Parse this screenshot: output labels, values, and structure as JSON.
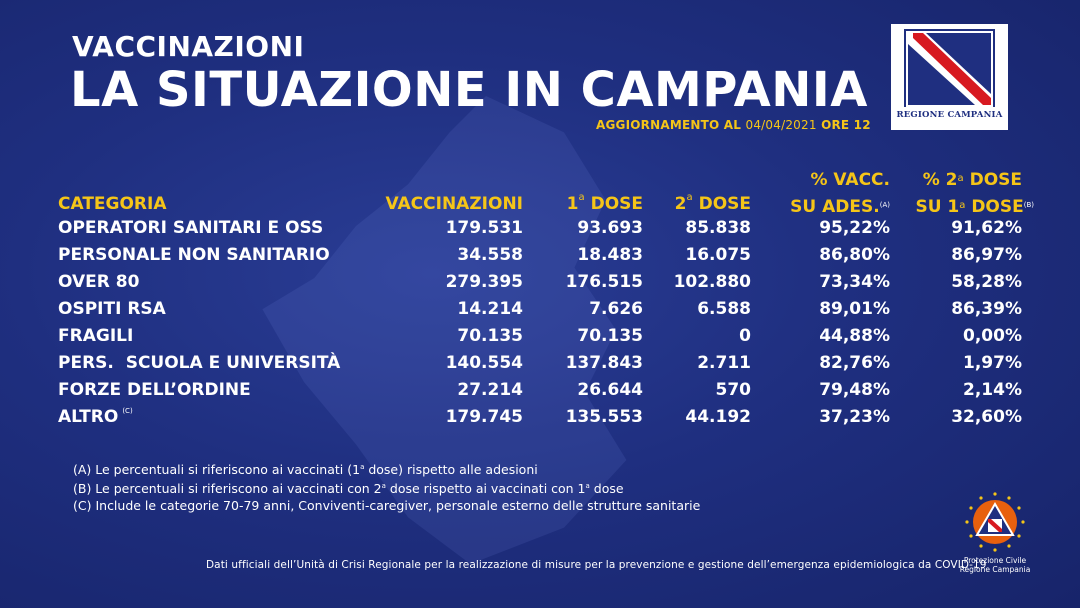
{
  "header": {
    "kicker": "VACCINAZIONI",
    "title": "LA SITUAZIONE IN CAMPANIA",
    "update_prefix": "AGGIORNAMENTO AL",
    "update_date": "04/04/2021",
    "update_suffix": "ORE 12"
  },
  "logo_regione": {
    "label": "REGIONE CAMPANIA",
    "icon": "coat-of-arms"
  },
  "table": {
    "headers": {
      "categoria": "CATEGORIA",
      "vaccinazioni": "VACCINAZIONI",
      "dose1_num": "1",
      "dose1_sup": "a",
      "dose1_word": "DOSE",
      "dose2_num": "2",
      "dose2_sup": "a",
      "dose2_word": "DOSE",
      "vacc_line1": "% VACC.",
      "vacc_line2": "SU ADES.",
      "vacc_note": "(A)",
      "second_line1_pre": "% 2",
      "second_line1_sup": "a",
      "second_line1_post": "DOSE",
      "second_line2_pre": "SU 1",
      "second_line2_sup": "a",
      "second_line2_post": "DOSE",
      "second_note": "(B)"
    },
    "rows": [
      {
        "categoria": "OPERATORI SANITARI E OSS",
        "vaccinazioni": "179.531",
        "dose1": "93.693",
        "dose2": "85.838",
        "perc_vacc": "95,22%",
        "perc_seconda": "91,62%"
      },
      {
        "categoria": "PERSONALE NON SANITARIO",
        "vaccinazioni": "34.558",
        "dose1": "18.483",
        "dose2": "16.075",
        "perc_vacc": "86,80%",
        "perc_seconda": "86,97%"
      },
      {
        "categoria": "OVER 80",
        "vaccinazioni": "279.395",
        "dose1": "176.515",
        "dose2": "102.880",
        "perc_vacc": "73,34%",
        "perc_seconda": "58,28%"
      },
      {
        "categoria": "OSPITI RSA",
        "vaccinazioni": "14.214",
        "dose1": "7.626",
        "dose2": "6.588",
        "perc_vacc": "89,01%",
        "perc_seconda": "86,39%"
      },
      {
        "categoria": "FRAGILI",
        "vaccinazioni": "70.135",
        "dose1": "70.135",
        "dose2": "0",
        "perc_vacc": "44,88%",
        "perc_seconda": "0,00%"
      },
      {
        "categoria": "PERS.  SCUOLA E UNIVERSITÀ",
        "vaccinazioni": "140.554",
        "dose1": "137.843",
        "dose2": "2.711",
        "perc_vacc": "82,76%",
        "perc_seconda": "1,97%"
      },
      {
        "categoria": "FORZE DELL’ORDINE",
        "vaccinazioni": "27.214",
        "dose1": "26.644",
        "dose2": "570",
        "perc_vacc": "79,48%",
        "perc_seconda": "2,14%"
      },
      {
        "categoria": "ALTRO",
        "categoria_note": "(C)",
        "vaccinazioni": "179.745",
        "dose1": "135.553",
        "dose2": "44.192",
        "perc_vacc": "37,23%",
        "perc_seconda": "32,60%"
      }
    ]
  },
  "notes": {
    "a_pre": "(A) Le percentuali si riferiscono ai vaccinati (1",
    "a_sup": "a",
    "a_post": " dose) rispetto alle adesioni",
    "b_pre": "(B) Le percentuali si riferiscono ai vaccinati con 2",
    "b_sup": "a",
    "b_mid": " dose rispetto ai vaccinati con 1",
    "b_sup2": "a",
    "b_post": " dose",
    "c": "(C) Include le categorie 70-79 anni, Conviventi-caregiver, personale esterno delle strutture sanitarie"
  },
  "footer": "Dati ufficiali dell’Unità di Crisi Regionale per la realizzazione di misure per la prevenzione e gestione dell’emergenza epidemiologica da COVID-19",
  "logo_pc": {
    "line1": "Protezione Civile",
    "line2": "Regione Campania",
    "icon": "civil-protection-logo"
  },
  "colors": {
    "background": "#1f2f80",
    "accent": "#f5c518",
    "text": "#ffffff"
  }
}
